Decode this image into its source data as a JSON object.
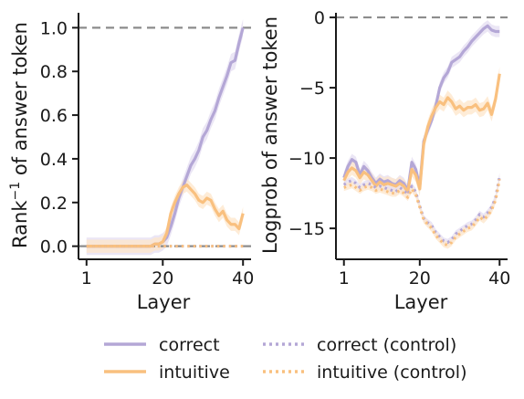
{
  "chart_data": [
    {
      "type": "line",
      "xlabel": "Layer",
      "ylabel": "Rank",
      "ylabel_sup": "−1",
      "ylabel_rest": " of answer token",
      "xlim": [
        -1,
        42
      ],
      "ylim": [
        -0.06,
        1.06
      ],
      "xticks": [
        1,
        20,
        40
      ],
      "yticks": [
        "0.0",
        "0.2",
        "0.4",
        "0.6",
        "0.8",
        "1.0"
      ],
      "reference_line": 1.0,
      "reference_line_2": 0.0,
      "series": [
        {
          "name": "correct",
          "style": "solid",
          "x": [
            1,
            2,
            3,
            4,
            5,
            6,
            7,
            8,
            9,
            10,
            11,
            12,
            13,
            14,
            15,
            16,
            17,
            18,
            19,
            20,
            21,
            22,
            23,
            24,
            25,
            26,
            27,
            28,
            29,
            30,
            31,
            32,
            33,
            34,
            35,
            36,
            37,
            38,
            39,
            40
          ],
          "values": [
            0,
            0,
            0,
            0,
            0,
            0,
            0,
            0,
            0,
            0,
            0,
            0,
            0,
            0,
            0,
            0,
            0,
            0.01,
            0.01,
            0.02,
            0.04,
            0.09,
            0.15,
            0.22,
            0.27,
            0.32,
            0.37,
            0.4,
            0.44,
            0.5,
            0.53,
            0.58,
            0.62,
            0.68,
            0.73,
            0.78,
            0.84,
            0.85,
            0.93,
            1.0
          ],
          "band": 0.04
        },
        {
          "name": "intuitive",
          "style": "solid",
          "x": [
            1,
            2,
            3,
            4,
            5,
            6,
            7,
            8,
            9,
            10,
            11,
            12,
            13,
            14,
            15,
            16,
            17,
            18,
            19,
            20,
            21,
            22,
            23,
            24,
            25,
            26,
            27,
            28,
            29,
            30,
            31,
            32,
            33,
            34,
            35,
            36,
            37,
            38,
            39,
            40
          ],
          "values": [
            0,
            0,
            0,
            0,
            0,
            0,
            0,
            0,
            0,
            0,
            0,
            0,
            0,
            0,
            0,
            0,
            0,
            0.01,
            0.01,
            0.02,
            0.06,
            0.15,
            0.2,
            0.24,
            0.27,
            0.28,
            0.26,
            0.24,
            0.21,
            0.2,
            0.22,
            0.21,
            0.17,
            0.14,
            0.16,
            0.12,
            0.1,
            0.1,
            0.08,
            0.15
          ],
          "band": 0.03
        },
        {
          "name": "correct (control)",
          "style": "dotted",
          "x": [
            1,
            40
          ],
          "values": [
            0,
            0
          ]
        },
        {
          "name": "intuitive (control)",
          "style": "dotted",
          "x": [
            1,
            40
          ],
          "values": [
            0,
            0
          ]
        }
      ]
    },
    {
      "type": "line",
      "xlabel": "Layer",
      "ylabel": "Logprob of answer token",
      "xlim": [
        -1,
        42
      ],
      "ylim": [
        -17.2,
        0.2
      ],
      "xticks": [
        1,
        20,
        40
      ],
      "yticks": [
        "0",
        "−5",
        "−10",
        "−15"
      ],
      "reference_line": 0,
      "series": [
        {
          "name": "correct",
          "style": "solid",
          "x": [
            1,
            2,
            3,
            4,
            5,
            6,
            7,
            8,
            9,
            10,
            11,
            12,
            13,
            14,
            15,
            16,
            17,
            18,
            19,
            20,
            21,
            22,
            23,
            24,
            25,
            26,
            27,
            28,
            29,
            30,
            31,
            32,
            33,
            34,
            35,
            36,
            37,
            38,
            39,
            40
          ],
          "values": [
            -11.4,
            -10.6,
            -10.1,
            -10.3,
            -11.2,
            -10.6,
            -10.9,
            -11.4,
            -11.8,
            -11.5,
            -11.7,
            -11.6,
            -11.8,
            -11.9,
            -11.6,
            -11.8,
            -12.3,
            -10.3,
            -10.8,
            -12.0,
            -8.8,
            -8.0,
            -7.3,
            -6.3,
            -5.0,
            -4.3,
            -3.9,
            -3.2,
            -3.0,
            -2.8,
            -2.4,
            -2.1,
            -1.7,
            -1.4,
            -1.1,
            -0.8,
            -0.6,
            -0.9,
            -1.0,
            -1.0
          ],
          "band": 0.4
        },
        {
          "name": "intuitive",
          "style": "solid",
          "x": [
            1,
            2,
            3,
            4,
            5,
            6,
            7,
            8,
            9,
            10,
            11,
            12,
            13,
            14,
            15,
            16,
            17,
            18,
            19,
            20,
            21,
            22,
            23,
            24,
            25,
            26,
            27,
            28,
            29,
            30,
            31,
            32,
            33,
            34,
            35,
            36,
            37,
            38,
            39,
            40
          ],
          "values": [
            -11.6,
            -11.0,
            -10.7,
            -10.9,
            -11.4,
            -11.0,
            -11.2,
            -11.6,
            -12.0,
            -11.7,
            -11.9,
            -11.8,
            -11.9,
            -12.0,
            -11.8,
            -12.0,
            -12.4,
            -10.8,
            -11.2,
            -12.2,
            -9.0,
            -7.8,
            -7.0,
            -6.4,
            -6.0,
            -6.2,
            -5.7,
            -6.0,
            -6.5,
            -6.3,
            -6.6,
            -6.4,
            -6.4,
            -6.2,
            -6.6,
            -6.5,
            -6.1,
            -6.9,
            -5.8,
            -4.0
          ],
          "band": 0.5
        },
        {
          "name": "correct (control)",
          "style": "dotted",
          "x": [
            1,
            2,
            3,
            4,
            5,
            6,
            7,
            8,
            9,
            10,
            11,
            12,
            13,
            14,
            15,
            16,
            17,
            18,
            19,
            20,
            21,
            22,
            23,
            24,
            25,
            26,
            27,
            28,
            29,
            30,
            31,
            32,
            33,
            34,
            35,
            36,
            37,
            38,
            39,
            40
          ],
          "values": [
            -11.9,
            -11.7,
            -11.6,
            -11.8,
            -12.1,
            -11.9,
            -11.8,
            -11.9,
            -12.1,
            -12.0,
            -12.1,
            -12.2,
            -12.3,
            -12.4,
            -12.1,
            -12.3,
            -12.6,
            -12.0,
            -12.4,
            -13.4,
            -14.3,
            -14.6,
            -14.8,
            -15.3,
            -15.6,
            -15.9,
            -16.0,
            -15.8,
            -15.4,
            -15.2,
            -15.0,
            -14.8,
            -14.7,
            -14.4,
            -14.0,
            -14.2,
            -13.9,
            -13.5,
            -12.8,
            -11.3
          ],
          "band": 0.25
        },
        {
          "name": "intuitive (control)",
          "style": "dotted",
          "x": [
            1,
            2,
            3,
            4,
            5,
            6,
            7,
            8,
            9,
            10,
            11,
            12,
            13,
            14,
            15,
            16,
            17,
            18,
            19,
            20,
            21,
            22,
            23,
            24,
            25,
            26,
            27,
            28,
            29,
            30,
            31,
            32,
            33,
            34,
            35,
            36,
            37,
            38,
            39,
            40
          ],
          "values": [
            -12.1,
            -12.0,
            -11.9,
            -12.1,
            -12.3,
            -12.1,
            -12.0,
            -12.1,
            -12.3,
            -12.2,
            -12.3,
            -12.4,
            -12.5,
            -12.5,
            -12.3,
            -12.5,
            -12.8,
            -12.2,
            -12.6,
            -13.5,
            -14.4,
            -14.7,
            -15.0,
            -15.5,
            -15.8,
            -16.1,
            -16.2,
            -16.0,
            -15.6,
            -15.4,
            -15.2,
            -15.0,
            -14.9,
            -14.6,
            -14.2,
            -14.4,
            -14.1,
            -13.7,
            -13.0,
            -11.5
          ],
          "band": 0.25
        }
      ]
    }
  ],
  "legend": {
    "items": [
      {
        "label": "correct",
        "color": "#b4a7d6",
        "style": "solid"
      },
      {
        "label": "intuitive",
        "color": "#f9c07f",
        "style": "solid"
      },
      {
        "label": "correct (control)",
        "color": "#b4a7d6",
        "style": "dotted"
      },
      {
        "label": "intuitive (control)",
        "color": "#f9c07f",
        "style": "dotted"
      }
    ]
  },
  "colors": {
    "correct": "#b4a7d6",
    "intuitive": "#f9c07f",
    "correct_band": "#e4def2",
    "intuitive_band": "#fde6c9",
    "reference": "#8c8c8c"
  }
}
